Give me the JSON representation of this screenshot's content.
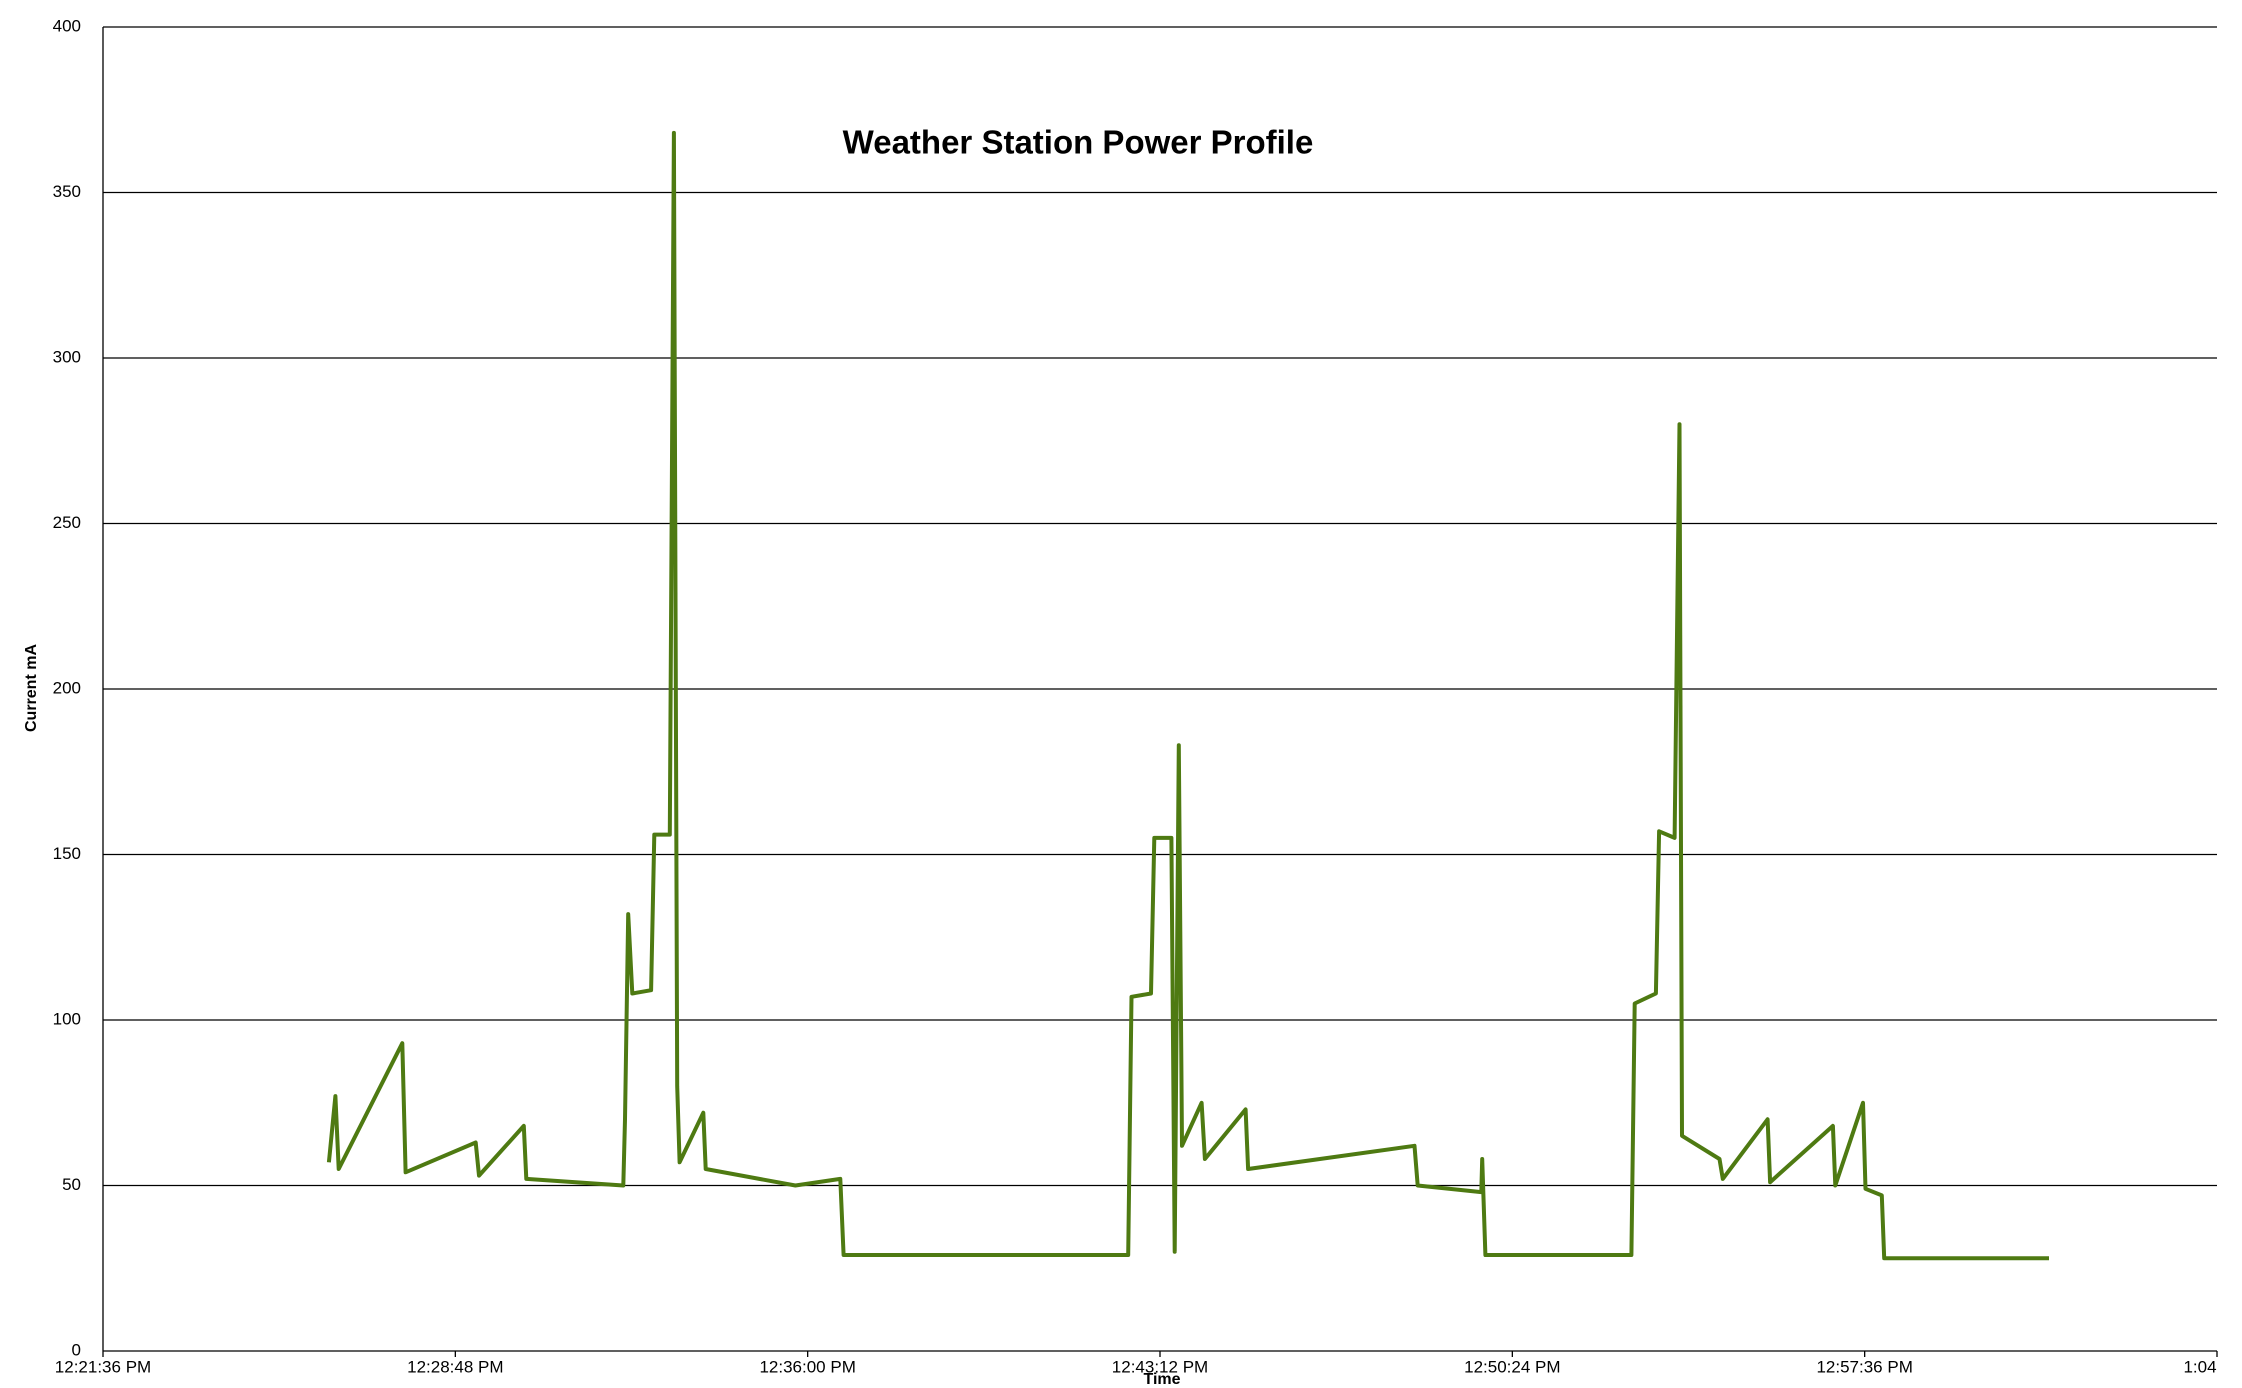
{
  "chart_data": {
    "type": "line",
    "title": "Weather Station Power Profile",
    "x_label": "Time",
    "y_label": "Current mA",
    "x": [
      "12:26:13 PM",
      "12:26:21 PM",
      "12:26:25 PM",
      "12:27:43 PM",
      "12:27:47 PM",
      "12:29:13 PM",
      "12:29:17 PM",
      "12:30:12 PM",
      "12:30:15 PM",
      "12:32:14 PM",
      "12:32:16 PM",
      "12:32:20 PM",
      "12:32:25 PM",
      "12:32:48 PM",
      "12:32:52 PM",
      "12:33:11 PM",
      "12:33:16 PM",
      "12:33:20 PM",
      "12:33:23 PM",
      "12:33:52 PM",
      "12:33:55 PM",
      "12:35:45 PM",
      "12:36:40 PM",
      "12:36:44 PM",
      "12:42:33 PM",
      "12:42:37 PM",
      "12:43:01 PM",
      "12:43:05 PM",
      "12:43:26 PM",
      "12:43:30 PM",
      "12:43:35 PM",
      "12:43:39 PM",
      "12:44:03 PM",
      "12:44:07 PM",
      "12:44:57 PM",
      "12:45:00 PM",
      "12:48:24 PM",
      "12:48:28 PM",
      "12:49:46 PM",
      "12:49:47 PM",
      "12:49:51 PM",
      "12:52:50 PM",
      "12:52:54 PM",
      "12:53:20 PM",
      "12:53:24 PM",
      "12:53:43 PM",
      "12:53:49 PM",
      "12:53:52 PM",
      "12:54:38 PM",
      "12:54:42 PM",
      "12:55:37 PM",
      "12:55:40 PM",
      "12:56:57 PM",
      "12:57:00 PM",
      "12:57:34 PM",
      "12:57:37 PM",
      "12:57:57 PM",
      "12:58:00 PM",
      "1:01:22 PM"
    ],
    "series": [
      {
        "name": "Current",
        "color": "#4e7a12",
        "values": [
          57,
          77,
          55,
          93,
          54,
          63,
          53,
          68,
          52,
          50,
          70,
          132,
          108,
          109,
          156,
          156,
          368,
          80,
          57,
          72,
          55,
          50,
          52,
          29,
          29,
          107,
          108,
          155,
          155,
          30,
          183,
          62,
          75,
          58,
          73,
          55,
          62,
          50,
          48,
          58,
          29,
          29,
          105,
          108,
          157,
          155,
          280,
          65,
          58,
          52,
          70,
          51,
          68,
          50,
          75,
          49,
          47,
          28,
          28
        ]
      }
    ],
    "xlim": [
      "12:21:36 PM",
      "1:04:48 PM"
    ],
    "xticks": [
      "12:21:36 PM",
      "12:28:48 PM",
      "12:36:00 PM",
      "12:43:12 PM",
      "12:50:24 PM",
      "12:57:36 PM",
      {
        "value": "1:04:48 PM",
        "label": "1:04"
      }
    ],
    "ylim": [
      0,
      400
    ],
    "yticks": [
      0,
      50,
      100,
      150,
      200,
      250,
      300,
      350,
      400
    ],
    "grid": true
  }
}
